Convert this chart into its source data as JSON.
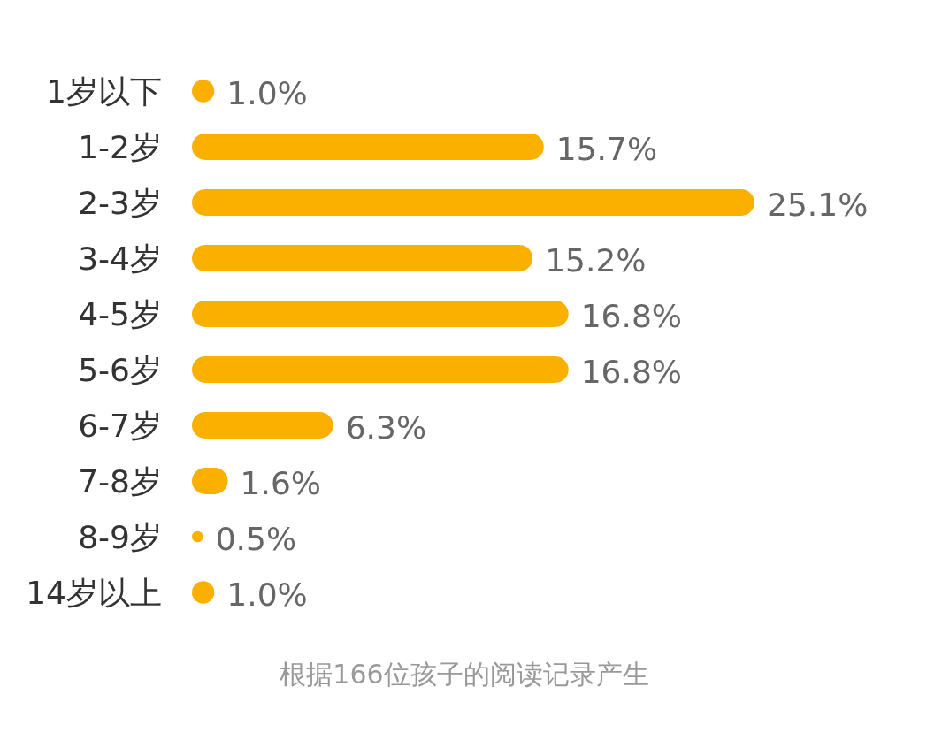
{
  "chart_data": {
    "type": "bar",
    "orientation": "horizontal",
    "categories": [
      "1岁以下",
      "1-2岁",
      "2-3岁",
      "3-4岁",
      "4-5岁",
      "5-6岁",
      "6-7岁",
      "7-8岁",
      "8-9岁",
      "14岁以上"
    ],
    "values": [
      1.0,
      15.7,
      25.1,
      15.2,
      16.8,
      16.8,
      6.3,
      1.6,
      0.5,
      1.0
    ],
    "value_labels": [
      "1.0%",
      "15.7%",
      "25.1%",
      "15.2%",
      "16.8%",
      "16.8%",
      "6.3%",
      "1.6%",
      "0.5%",
      "1.0%"
    ],
    "color": "#fbb000",
    "annotations": [
      "根据166位孩子的阅读记录产生"
    ]
  }
}
